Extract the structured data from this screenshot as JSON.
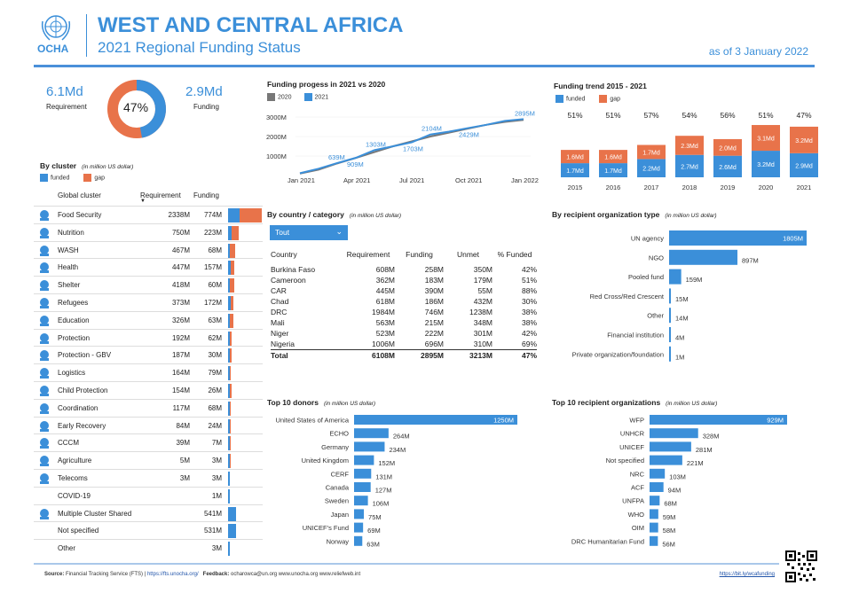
{
  "header": {
    "title": "WEST AND CENTRAL AFRICA",
    "subtitle": "2021 Regional Funding Status",
    "date": "as of 3 January 2022",
    "logo_text": "OCHA"
  },
  "summary": {
    "requirement_value": "6.1Md",
    "requirement_label": "Requirement",
    "funding_value": "2.9Md",
    "funding_label": "Funding",
    "percent_label": "47%",
    "percent_funded": 47
  },
  "colors": {
    "funded": "#3b8fd9",
    "gap": "#e8734a",
    "y2020": "#777777",
    "y2021": "#3b8fd9"
  },
  "cluster": {
    "title": "By cluster",
    "unit_note": "(in million US dollar)",
    "legend_funded": "funded",
    "legend_gap": "gap",
    "col_cluster": "Global cluster",
    "col_requirement": "Requirement",
    "col_funding": "Funding",
    "rows": [
      {
        "name": "Food Security",
        "req": "2338M",
        "fund": "774M",
        "icon": "food-security-icon"
      },
      {
        "name": "Nutrition",
        "req": "750M",
        "fund": "223M",
        "icon": "nutrition-icon"
      },
      {
        "name": "WASH",
        "req": "467M",
        "fund": "68M",
        "icon": "wash-icon"
      },
      {
        "name": "Health",
        "req": "447M",
        "fund": "157M",
        "icon": "health-icon"
      },
      {
        "name": "Shelter",
        "req": "418M",
        "fund": "60M",
        "icon": "shelter-icon"
      },
      {
        "name": "Refugees",
        "req": "373M",
        "fund": "172M",
        "icon": "refugees-icon"
      },
      {
        "name": "Education",
        "req": "326M",
        "fund": "63M",
        "icon": "education-icon"
      },
      {
        "name": "Protection",
        "req": "192M",
        "fund": "62M",
        "icon": "protection-icon"
      },
      {
        "name": "Protection - GBV",
        "req": "187M",
        "fund": "30M",
        "icon": "protection-gbv-icon"
      },
      {
        "name": "Logistics",
        "req": "164M",
        "fund": "79M",
        "icon": "logistics-icon"
      },
      {
        "name": "Child Protection",
        "req": "154M",
        "fund": "26M",
        "icon": "child-protection-icon"
      },
      {
        "name": "Coordination",
        "req": "117M",
        "fund": "68M",
        "icon": "coordination-icon"
      },
      {
        "name": "Early Recovery",
        "req": "84M",
        "fund": "24M",
        "icon": "early-recovery-icon"
      },
      {
        "name": "CCCM",
        "req": "39M",
        "fund": "7M",
        "icon": "cccm-icon"
      },
      {
        "name": "Agriculture",
        "req": "5M",
        "fund": "3M",
        "icon": "agriculture-icon"
      },
      {
        "name": "Telecoms",
        "req": "3M",
        "fund": "3M",
        "icon": "telecoms-icon"
      },
      {
        "name": "COVID-19",
        "req": "",
        "fund": "1M",
        "icon": ""
      },
      {
        "name": "Multiple Cluster Shared",
        "req": "",
        "fund": "541M",
        "icon": "multiple-cluster-icon"
      },
      {
        "name": "Not specified",
        "req": "",
        "fund": "531M",
        "icon": ""
      },
      {
        "name": "Other",
        "req": "",
        "fund": "3M",
        "icon": ""
      }
    ]
  },
  "progress": {
    "title": "Funding progess in 2021 vs 2020",
    "legend_2020": "2020",
    "legend_2021": "2021",
    "y_ticks": [
      "3000M",
      "2000M",
      "1000M"
    ],
    "x_ticks": [
      "Jan 2021",
      "Apr 2021",
      "Jul 2021",
      "Oct 2021",
      "Jan 2022"
    ],
    "labels": [
      "639M",
      "909M",
      "1303M",
      "1703M",
      "2104M",
      "2429M",
      "2895M"
    ]
  },
  "country": {
    "title": "By country / category",
    "unit_note": "(in million US dollar)",
    "dropdown_value": "Tout",
    "columns": [
      "Country",
      "Requirement",
      "Funding",
      "Unmet",
      "% Funded"
    ],
    "rows": [
      [
        "Burkina Faso",
        "608M",
        "258M",
        "350M",
        "42%"
      ],
      [
        "Cameroon",
        "362M",
        "183M",
        "179M",
        "51%"
      ],
      [
        "CAR",
        "445M",
        "390M",
        "55M",
        "88%"
      ],
      [
        "Chad",
        "618M",
        "186M",
        "432M",
        "30%"
      ],
      [
        "DRC",
        "1984M",
        "746M",
        "1238M",
        "38%"
      ],
      [
        "Mali",
        "563M",
        "215M",
        "348M",
        "38%"
      ],
      [
        "Niger",
        "523M",
        "222M",
        "301M",
        "42%"
      ],
      [
        "Nigeria",
        "1006M",
        "696M",
        "310M",
        "69%"
      ]
    ],
    "total": [
      "Total",
      "6108M",
      "2895M",
      "3213M",
      "47%"
    ]
  },
  "chart_data": [
    {
      "type": "pie",
      "title": "",
      "categories": [
        "funded",
        "gap"
      ],
      "values": [
        47,
        53
      ]
    },
    {
      "type": "bar",
      "title": "Funding trend 2015 - 2021",
      "legend": [
        "funded",
        "gap"
      ],
      "categories": [
        "2015",
        "2016",
        "2017",
        "2018",
        "2019",
        "2020",
        "2021"
      ],
      "percent_labels": [
        "51%",
        "51%",
        "57%",
        "54%",
        "56%",
        "51%",
        "47%"
      ],
      "series": [
        {
          "name": "funded",
          "values": [
            1.7,
            1.7,
            2.2,
            2.7,
            2.6,
            3.2,
            2.9
          ],
          "labels": [
            "1.7Md",
            "1.7Md",
            "2.2Md",
            "2.7Md",
            "2.6Md",
            "3.2Md",
            "2.9Md"
          ]
        },
        {
          "name": "gap",
          "values": [
            1.6,
            1.6,
            1.7,
            2.3,
            2.0,
            3.1,
            3.2
          ],
          "labels": [
            "1.6Md",
            "1.6Md",
            "1.7Md",
            "2.3Md",
            "2.0Md",
            "3.1Md",
            "3.2Md"
          ]
        }
      ]
    },
    {
      "type": "bar",
      "title": "By recipient organization type",
      "unit_note": "(in million US dollar)",
      "categories": [
        "UN agency",
        "NGO",
        "Pooled fund",
        "Red Cross/Red Crescent",
        "Other",
        "Financial institution",
        "Private organization/foundation"
      ],
      "values": [
        1805,
        897,
        159,
        15,
        14,
        4,
        1
      ],
      "labels": [
        "1805M",
        "897M",
        "159M",
        "15M",
        "14M",
        "4M",
        "1M"
      ]
    },
    {
      "type": "bar",
      "title": "Top 10 donors",
      "unit_note": "(in million US dollar)",
      "categories": [
        "United States of America",
        "ECHO",
        "Germany",
        "United Kingdom",
        "CERF",
        "Canada",
        "Sweden",
        "Japan",
        "UNICEF's Fund",
        "Norway"
      ],
      "values": [
        1250,
        264,
        234,
        152,
        131,
        127,
        106,
        75,
        69,
        63
      ],
      "labels": [
        "1250M",
        "264M",
        "234M",
        "152M",
        "131M",
        "127M",
        "106M",
        "75M",
        "69M",
        "63M"
      ]
    },
    {
      "type": "bar",
      "title": "Top 10 recipient organizations",
      "unit_note": "(in million US dollar)",
      "categories": [
        "WFP",
        "UNHCR",
        "UNICEF",
        "Not specified",
        "NRC",
        "ACF",
        "UNFPA",
        "WHO",
        "OIM",
        "DRC Humanitarian Fund"
      ],
      "values": [
        929,
        328,
        281,
        221,
        103,
        94,
        68,
        59,
        58,
        56
      ],
      "labels": [
        "929M",
        "328M",
        "281M",
        "221M",
        "103M",
        "94M",
        "68M",
        "59M",
        "58M",
        "56M"
      ]
    },
    {
      "type": "line",
      "title": "Funding progess in 2021 vs 2020",
      "ylim": [
        0,
        3000
      ],
      "series": [
        {
          "name": "2020",
          "x": [
            0,
            1,
            2,
            3,
            4,
            5,
            6,
            7,
            8,
            9,
            10,
            11,
            12
          ],
          "values": [
            100,
            300,
            620,
            900,
            1200,
            1500,
            1750,
            2000,
            2200,
            2400,
            2600,
            2750,
            2850
          ]
        },
        {
          "name": "2021",
          "x": [
            0,
            1,
            2,
            3,
            4,
            5,
            6,
            7,
            8,
            9,
            10,
            11,
            12
          ],
          "values": [
            120,
            350,
            639,
            909,
            1303,
            1500,
            1703,
            2104,
            2250,
            2429,
            2600,
            2800,
            2895
          ]
        }
      ]
    }
  ],
  "footer": {
    "source_label": "Source:",
    "source_text": "Financial Tracking Service (FTS) |",
    "source_link": "https://fts.unocha.org/",
    "feedback_label": "Feedback:",
    "feedback_text": "ocharowca@un.org     www.unocha.org     www.reliefweb.int",
    "short_link": "https://bit.ly/wcafunding"
  }
}
